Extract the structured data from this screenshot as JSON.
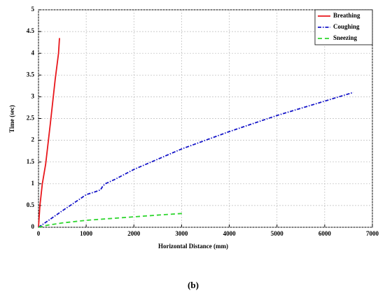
{
  "chart_data": {
    "type": "line",
    "xlabel": "Horizontal Distance (mm)",
    "ylabel": "Time (sec)",
    "caption": "(b)",
    "xlim": [
      0,
      7000
    ],
    "xticks": [
      0,
      1000,
      2000,
      3000,
      4000,
      5000,
      6000,
      7000
    ],
    "ylim": [
      0,
      5
    ],
    "yticks": [
      0,
      0.5,
      1,
      1.5,
      2,
      2.5,
      3,
      3.5,
      4,
      4.5,
      5
    ],
    "grid": true,
    "legend": "upper right",
    "series": [
      {
        "name": "Breathing",
        "color": "#e8161b",
        "style": "solid",
        "x": [
          0,
          30,
          80,
          150,
          250,
          350,
          420,
          440
        ],
        "values": [
          0,
          0.5,
          1.0,
          1.45,
          2.4,
          3.4,
          4.0,
          4.35
        ]
      },
      {
        "name": "Coughing",
        "color": "#1414c8",
        "style": "dashdot",
        "x": [
          0,
          200,
          500,
          800,
          1000,
          1200,
          1300,
          1350,
          1400,
          1600,
          2000,
          3000,
          4000,
          5000,
          6000,
          6600
        ],
        "values": [
          0,
          0.15,
          0.38,
          0.6,
          0.75,
          0.82,
          0.86,
          0.95,
          1.0,
          1.1,
          1.33,
          1.8,
          2.2,
          2.57,
          2.9,
          3.1
        ]
      },
      {
        "name": "Sneezing",
        "color": "#2fd62f",
        "style": "dashed",
        "x": [
          0,
          200,
          500,
          1000,
          1500,
          2000,
          2500,
          3050
        ],
        "values": [
          0,
          0.05,
          0.1,
          0.16,
          0.2,
          0.24,
          0.28,
          0.32
        ]
      }
    ]
  }
}
